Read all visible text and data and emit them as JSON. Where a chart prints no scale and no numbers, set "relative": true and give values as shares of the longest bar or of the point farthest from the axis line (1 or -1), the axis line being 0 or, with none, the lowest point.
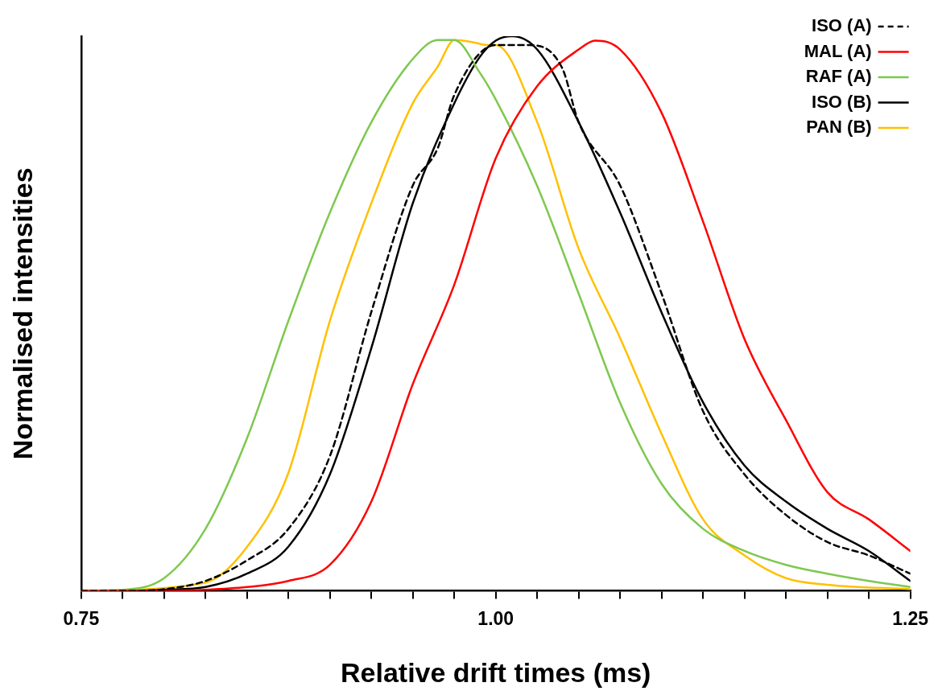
{
  "chart_data": {
    "type": "line",
    "relative": true,
    "xlabel": "Relative drift times (ms)",
    "ylabel": "Normalised intensities",
    "xlim": [
      0.75,
      1.25
    ],
    "xticks": [
      {
        "value": 0.75,
        "label": "0.75"
      },
      {
        "value": 0.775,
        "label": null
      },
      {
        "value": 0.8,
        "label": null
      },
      {
        "value": 0.825,
        "label": null
      },
      {
        "value": 0.85,
        "label": null
      },
      {
        "value": 0.875,
        "label": null
      },
      {
        "value": 0.9,
        "label": null
      },
      {
        "value": 0.925,
        "label": null
      },
      {
        "value": 0.95,
        "label": null
      },
      {
        "value": 0.975,
        "label": null
      },
      {
        "value": 1.0,
        "label": "1.00"
      },
      {
        "value": 1.025,
        "label": null
      },
      {
        "value": 1.05,
        "label": null
      },
      {
        "value": 1.075,
        "label": null
      },
      {
        "value": 1.1,
        "label": null
      },
      {
        "value": 1.125,
        "label": null
      },
      {
        "value": 1.15,
        "label": null
      },
      {
        "value": 1.175,
        "label": null
      },
      {
        "value": 1.2,
        "label": null
      },
      {
        "value": 1.225,
        "label": null
      },
      {
        "value": 1.25,
        "label": "1.25"
      }
    ],
    "grid": false,
    "legend": "top right",
    "marker": "none",
    "series": [
      {
        "name": "ISO (A)",
        "color": "#000000",
        "line_style": "dashed",
        "x": [
          0.75,
          0.775,
          0.8,
          0.825,
          0.85,
          0.875,
          0.9,
          0.925,
          0.95,
          0.965,
          0.975,
          1.0,
          1.02,
          1.04,
          1.05,
          1.075,
          1.1,
          1.125,
          1.15,
          1.175,
          1.2,
          1.225,
          1.25
        ],
        "values": [
          0,
          0,
          0.003,
          0.018,
          0.055,
          0.112,
          0.243,
          0.503,
          0.731,
          0.798,
          0.894,
          0.984,
          0.984,
          0.943,
          0.845,
          0.731,
          0.536,
          0.324,
          0.21,
          0.137,
          0.088,
          0.064,
          0.031
        ]
      },
      {
        "name": "MAL (A)",
        "color": "#ff0000",
        "line_style": "solid",
        "x": [
          0.75,
          0.8,
          0.825,
          0.85,
          0.875,
          0.9,
          0.925,
          0.95,
          0.975,
          1.0,
          1.025,
          1.05,
          1.06,
          1.075,
          1.1,
          1.125,
          1.15,
          1.175,
          1.2,
          1.225,
          1.25
        ],
        "values": [
          0,
          0,
          0.002,
          0.007,
          0.018,
          0.047,
          0.161,
          0.373,
          0.552,
          0.78,
          0.91,
          0.976,
          0.992,
          0.976,
          0.862,
          0.666,
          0.454,
          0.308,
          0.178,
          0.129,
          0.072
        ]
      },
      {
        "name": "RAF (A)",
        "color": "#7ec850",
        "line_style": "solid",
        "x": [
          0.75,
          0.775,
          0.8,
          0.825,
          0.85,
          0.875,
          0.9,
          0.925,
          0.95,
          0.965,
          0.975,
          0.99,
          1.0,
          1.025,
          1.05,
          1.075,
          1.1,
          1.125,
          1.15,
          1.175,
          1.2,
          1.225,
          1.25
        ],
        "values": [
          0,
          0.002,
          0.023,
          0.112,
          0.275,
          0.487,
          0.682,
          0.845,
          0.959,
          0.993,
          0.993,
          0.936,
          0.886,
          0.73,
          0.536,
          0.339,
          0.193,
          0.112,
          0.072,
          0.047,
          0.031,
          0.018,
          0.007
        ]
      },
      {
        "name": "ISO (B)",
        "color": "#000000",
        "line_style": "solid",
        "x": [
          0.75,
          0.775,
          0.8,
          0.825,
          0.85,
          0.875,
          0.9,
          0.925,
          0.95,
          0.975,
          0.99,
          1.0,
          1.01,
          1.025,
          1.05,
          1.075,
          1.1,
          1.125,
          1.15,
          1.175,
          1.2,
          1.225,
          1.25
        ],
        "values": [
          0,
          0,
          0.002,
          0.007,
          0.031,
          0.08,
          0.21,
          0.438,
          0.699,
          0.879,
          0.961,
          0.992,
          1,
          0.976,
          0.845,
          0.682,
          0.502,
          0.34,
          0.226,
          0.161,
          0.112,
          0.072,
          0.018
        ]
      },
      {
        "name": "PAN (B)",
        "color": "#ffc000",
        "line_style": "solid",
        "x": [
          0.75,
          0.825,
          0.85,
          0.875,
          0.9,
          0.925,
          0.95,
          0.965,
          0.975,
          0.985,
          0.995,
          1.0,
          1.025,
          1.05,
          1.075,
          1.1,
          1.125,
          1.15,
          1.175,
          1.2,
          1.25
        ],
        "values": [
          0,
          0.015,
          0.079,
          0.213,
          0.487,
          0.699,
          0.879,
          0.945,
          0.993,
          0.99,
          0.984,
          0.984,
          0.845,
          0.617,
          0.456,
          0.283,
          0.129,
          0.064,
          0.023,
          0.011,
          0.003
        ]
      }
    ]
  }
}
